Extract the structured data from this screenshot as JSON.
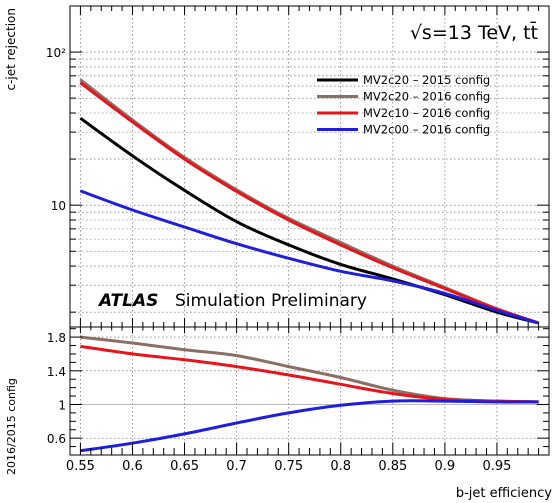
{
  "chart_data": [
    {
      "panel": "main",
      "type": "line",
      "ylabel": "c-jet rejection",
      "xlim": [
        0.54,
        1.0
      ],
      "ylim": [
        1.6,
        200
      ],
      "yscale": "log",
      "yticks": [
        10,
        100
      ],
      "ytick_labels": [
        "10",
        "10²"
      ],
      "grid": true,
      "legend_position": "top-right",
      "annotation_top": "√s=13 TeV, tt̄",
      "annotation_bold": "ATLAS",
      "annotation_rest": "Simulation Preliminary",
      "series": [
        {
          "name": "MV2c20 – 2015 config",
          "color": "#000000",
          "x": [
            0.55,
            0.6,
            0.65,
            0.7,
            0.75,
            0.8,
            0.85,
            0.9,
            0.95,
            0.99
          ],
          "y": [
            37,
            21,
            12.5,
            7.8,
            5.5,
            4.1,
            3.3,
            2.6,
            2.0,
            1.7
          ]
        },
        {
          "name": "MV2c20 – 2016 config",
          "color": "#8B6F64",
          "x": [
            0.55,
            0.6,
            0.65,
            0.7,
            0.75,
            0.8,
            0.85,
            0.9,
            0.95,
            0.99
          ],
          "y": [
            66,
            36,
            20.5,
            12.6,
            8.2,
            5.7,
            4.0,
            2.9,
            2.1,
            1.7
          ]
        },
        {
          "name": "MV2c10 – 2016 config",
          "color": "#E8141C",
          "x": [
            0.55,
            0.6,
            0.65,
            0.7,
            0.75,
            0.8,
            0.85,
            0.9,
            0.95,
            0.99
          ],
          "y": [
            63,
            35,
            20,
            12.3,
            8.0,
            5.5,
            3.9,
            2.85,
            2.1,
            1.7
          ]
        },
        {
          "name": "MV2c00 – 2016 config",
          "color": "#1E1EDC",
          "x": [
            0.55,
            0.6,
            0.65,
            0.7,
            0.75,
            0.8,
            0.85,
            0.9,
            0.95,
            0.99
          ],
          "y": [
            12.4,
            9.3,
            7.2,
            5.6,
            4.5,
            3.7,
            3.2,
            2.65,
            2.05,
            1.7
          ]
        }
      ]
    },
    {
      "panel": "ratio",
      "type": "line",
      "xlabel": "b-jet efficiency",
      "ylabel": "2016/2015 config",
      "xlim": [
        0.54,
        1.0
      ],
      "ylim": [
        0.4,
        1.92
      ],
      "xticks": [
        0.55,
        0.6,
        0.65,
        0.7,
        0.75,
        0.8,
        0.85,
        0.9,
        0.95
      ],
      "yticks": [
        0.6,
        1.0,
        1.4,
        1.8
      ],
      "reference_line": 1,
      "series": [
        {
          "name": "MV2c20 – 2016 config",
          "color": "#8B6F64",
          "x": [
            0.55,
            0.6,
            0.65,
            0.7,
            0.75,
            0.8,
            0.85,
            0.9,
            0.95,
            0.99
          ],
          "y": [
            1.8,
            1.73,
            1.65,
            1.58,
            1.45,
            1.32,
            1.17,
            1.07,
            1.04,
            1.03
          ]
        },
        {
          "name": "MV2c10 – 2016 config",
          "color": "#E8141C",
          "x": [
            0.55,
            0.6,
            0.65,
            0.7,
            0.75,
            0.8,
            0.85,
            0.9,
            0.95,
            0.99
          ],
          "y": [
            1.69,
            1.6,
            1.53,
            1.45,
            1.35,
            1.24,
            1.13,
            1.06,
            1.04,
            1.03
          ]
        },
        {
          "name": "MV2c00 – 2016 config",
          "color": "#1E1EDC",
          "x": [
            0.55,
            0.6,
            0.65,
            0.7,
            0.75,
            0.8,
            0.85,
            0.9,
            0.95,
            0.99
          ],
          "y": [
            0.45,
            0.54,
            0.65,
            0.78,
            0.9,
            0.99,
            1.04,
            1.04,
            1.03,
            1.03
          ]
        }
      ]
    }
  ]
}
